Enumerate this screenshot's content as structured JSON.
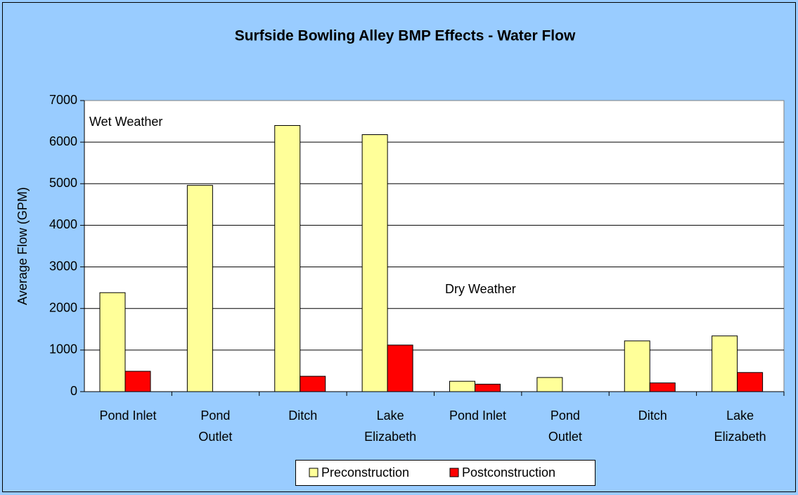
{
  "chart_data": {
    "type": "bar",
    "title": "Surfside Bowling Alley BMP Effects - Water Flow",
    "y_label": "Average Flow (GPM)",
    "annotations": [
      "Wet Weather",
      "Dry Weather"
    ],
    "categories": [
      "Pond Inlet",
      "Pond\nOutlet",
      "Ditch",
      "Lake\nElizabeth",
      "Pond Inlet",
      "Pond\nOutlet",
      "Ditch",
      "Lake\nElizabeth"
    ],
    "series": [
      {
        "name": "Preconstruction",
        "color": "#ffff99",
        "values": [
          2380,
          4960,
          6400,
          6180,
          250,
          340,
          1220,
          1340
        ]
      },
      {
        "name": "Postconstruction",
        "color": "#ff0000",
        "values": [
          490,
          0,
          370,
          1120,
          180,
          0,
          210,
          460
        ]
      }
    ],
    "ylim": [
      0,
      7000
    ],
    "yticks": [
      0,
      1000,
      2000,
      3000,
      4000,
      5000,
      6000,
      7000
    ],
    "grid": true,
    "legend": "bottom"
  }
}
